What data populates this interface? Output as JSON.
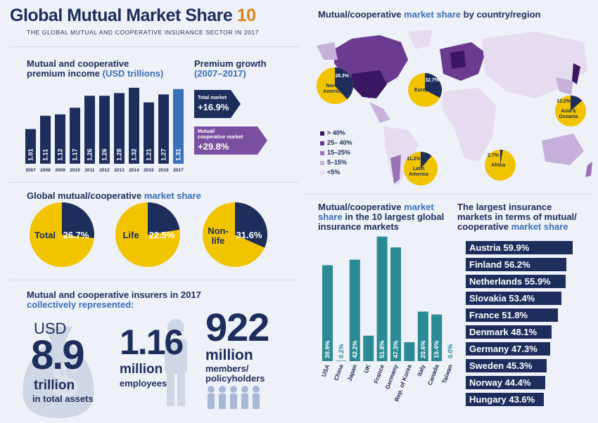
{
  "header": {
    "title_main": "Global Mutual Market Share",
    "title_number": "10",
    "subtitle": "THE GLOBAL MUTUAL AND COOPERATIVE INSURANCE SECTOR IN 2017"
  },
  "colors": {
    "navy": "#1d2d5c",
    "blue_accent": "#3a70b9",
    "yellow": "#f2c400",
    "purple": "#7b4fa0",
    "teal": "#2a8a96",
    "orange": "#e0821e"
  },
  "premium_section": {
    "heading_line1": "Mutual and cooperative",
    "heading_line2": "premium income",
    "heading_unit": "(USD trillions)",
    "growth_title": "Premium growth",
    "growth_period": "(2007–2017)",
    "total_label": "Total market",
    "total_value": "+16.9%",
    "mutual_label_1": "Mutual/",
    "mutual_label_2": "cooperative market",
    "mutual_value": "+29.8%"
  },
  "global_share": {
    "heading_part1": "Global mutual/cooperative",
    "heading_part2": "market share",
    "pies": [
      {
        "label": "Total",
        "value_label": "26.7%",
        "value": 26.7
      },
      {
        "label": "Life",
        "value_label": "22.5%",
        "value": 22.5
      },
      {
        "label": "Non-life",
        "label_1": "Non-",
        "label_2": "life",
        "value_label": "31.6%",
        "value": 31.6
      }
    ]
  },
  "insurers_2017": {
    "heading_line1": "Mutual and cooperative insurers in 2017",
    "heading_line2": "collectively represented:",
    "assets_prefix": "USD",
    "assets_value": "8.9",
    "assets_unit": "trillion",
    "assets_note": "in total assets",
    "employees_value": "1.16",
    "employees_unit": "million",
    "employees_note": "employees",
    "members_value": "922",
    "members_unit": "million",
    "members_note_1": "members/",
    "members_note_2": "policyholders"
  },
  "map_section": {
    "heading_part1": "Mutual/cooperative",
    "heading_part2": "market share",
    "heading_part3": "by country/region",
    "legend": [
      {
        "label": "> 40%",
        "color": "#3c1761"
      },
      {
        "label": "25– 40%",
        "color": "#6a3b8f"
      },
      {
        "label": "15–25%",
        "color": "#9a72b8"
      },
      {
        "label": "5–15%",
        "color": "#c7b1da"
      },
      {
        "label": "<5%",
        "color": "#e6dcef"
      }
    ],
    "regions": [
      {
        "name_1": "North",
        "name_2": "America",
        "value_label": "38.3%",
        "value": 38.3
      },
      {
        "name_1": "Europe",
        "name_2": "",
        "value_label": "32.7%",
        "value": 32.7
      },
      {
        "name_1": "Asia &",
        "name_2": "Oceania",
        "value_label": "13.2%",
        "value": 13.2
      },
      {
        "name_1": "Latin",
        "name_2": "America",
        "value_label": "11.2%",
        "value": 11.2
      },
      {
        "name_1": "Africa",
        "name_2": "",
        "value_label": "2.7%",
        "value": 2.7
      }
    ]
  },
  "top10_section": {
    "heading_part1": "Mutual/cooperative",
    "heading_part2": "market",
    "heading_part3": "share",
    "heading_part4": "in the 10 largest global",
    "heading_part5": "insurance markets"
  },
  "largest_section": {
    "heading_line1": "The largest insurance",
    "heading_line2": "markets in terms of mutual/",
    "heading_line3_part1": "cooperative",
    "heading_line3_part2": "market share",
    "items": [
      {
        "country": "Austria",
        "value_label": "59.9%",
        "value": 59.9
      },
      {
        "country": "Finland",
        "value_label": "56.2%",
        "value": 56.2
      },
      {
        "country": "Netherlands",
        "value_label": "55.9%",
        "value": 55.9
      },
      {
        "country": "Slovakia",
        "value_label": "53.4%",
        "value": 53.4
      },
      {
        "country": "France",
        "value_label": "51.8%",
        "value": 51.8
      },
      {
        "country": "Denmark",
        "value_label": "48.1%",
        "value": 48.1
      },
      {
        "country": "Germany",
        "value_label": "47.3%",
        "value": 47.3
      },
      {
        "country": "Sweden",
        "value_label": "45.3%",
        "value": 45.3
      },
      {
        "country": "Norway",
        "value_label": "44.4%",
        "value": 44.4
      },
      {
        "country": "Hungary",
        "value_label": "43.6%",
        "value": 43.6
      }
    ]
  },
  "chart_data": [
    {
      "type": "bar",
      "title": "Mutual and cooperative premium income (USD trillions)",
      "categories": [
        "2007",
        "2008",
        "2009",
        "2010",
        "2011",
        "2012",
        "2013",
        "2014",
        "2015",
        "2016",
        "2017"
      ],
      "values": [
        1.01,
        1.11,
        1.12,
        1.17,
        1.26,
        1.26,
        1.28,
        1.32,
        1.21,
        1.27,
        1.31
      ],
      "value_labels": [
        "1.01",
        "1.11",
        "1.12",
        "1.17",
        "1.26",
        "1.26",
        "1.28",
        "1.32",
        "1.21",
        "1.27",
        "1.31"
      ]
    },
    {
      "type": "bar",
      "title": "Mutual/cooperative market share in the 10 largest global insurance markets",
      "categories": [
        "USA",
        "China",
        "Japan",
        "UK",
        "France",
        "Germany",
        "Rep. of Korea",
        "Italy",
        "Canada",
        "Taiwan"
      ],
      "values": [
        39.9,
        0.2,
        42.2,
        10.6,
        51.8,
        47.3,
        7.9,
        20.6,
        19.4,
        0.0
      ],
      "value_labels": [
        "39.9%",
        "0.2%",
        "42.2%",
        "10.6%",
        "51.8%",
        "47.3%",
        "7.9%",
        "20.6%",
        "19.4%",
        "0.0%"
      ]
    },
    {
      "type": "pie",
      "title": "Global mutual/cooperative market share",
      "categories": [
        "Total",
        "Life",
        "Non-life"
      ],
      "values": [
        26.7,
        22.5,
        31.6
      ]
    },
    {
      "type": "pie",
      "title": "Mutual/cooperative market share by country/region",
      "categories": [
        "North America",
        "Europe",
        "Asia & Oceania",
        "Latin America",
        "Africa"
      ],
      "values": [
        38.3,
        32.7,
        13.2,
        11.2,
        2.7
      ]
    },
    {
      "type": "bar",
      "title": "The largest insurance markets in terms of mutual/cooperative market share",
      "categories": [
        "Austria",
        "Finland",
        "Netherlands",
        "Slovakia",
        "France",
        "Denmark",
        "Germany",
        "Sweden",
        "Norway",
        "Hungary"
      ],
      "values": [
        59.9,
        56.2,
        55.9,
        53.4,
        51.8,
        48.1,
        47.3,
        45.3,
        44.4,
        43.6
      ]
    }
  ]
}
